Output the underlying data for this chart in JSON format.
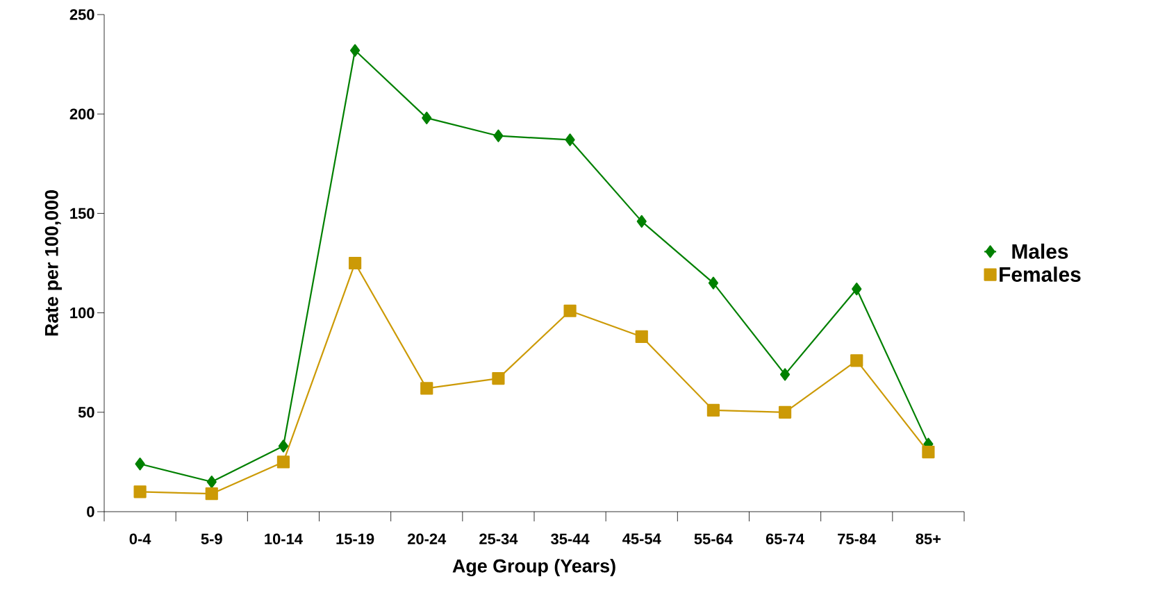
{
  "chart_data": {
    "type": "line",
    "xlabel": "Age Group (Years)",
    "ylabel": "Rate per 100,000",
    "categories": [
      "0-4",
      "5-9",
      "10-14",
      "15-19",
      "20-24",
      "25-34",
      "35-44",
      "45-54",
      "55-64",
      "65-74",
      "75-84",
      "85+"
    ],
    "series": [
      {
        "name": "Males",
        "color": "#008000",
        "marker": "diamond",
        "values": [
          24,
          15,
          33,
          232,
          198,
          189,
          187,
          146,
          115,
          69,
          112,
          34
        ]
      },
      {
        "name": "Females",
        "color": "#cc9a06",
        "marker": "square",
        "values": [
          10,
          9,
          25,
          125,
          62,
          67,
          101,
          88,
          51,
          50,
          76,
          30
        ]
      }
    ],
    "ylim": [
      0,
      250
    ],
    "yticks": [
      0,
      50,
      100,
      150,
      200,
      250
    ],
    "grid": false,
    "legend": "right",
    "line_style": "solid"
  }
}
